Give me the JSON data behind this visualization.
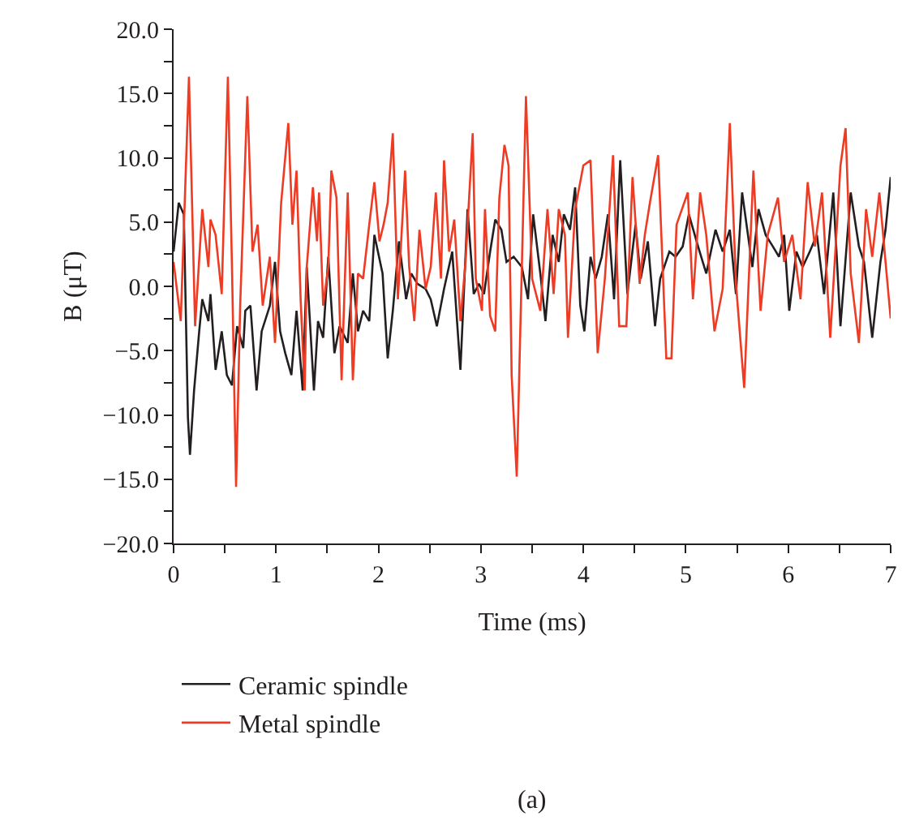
{
  "chart_data": {
    "type": "line",
    "xlabel": "Time (ms)",
    "ylabel": "B (μT)",
    "xlim": [
      0,
      7
    ],
    "ylim": [
      -20,
      20
    ],
    "xticks": [
      0,
      {
        "value": 0.5,
        "label": null
      },
      1,
      {
        "value": 1.5,
        "label": null
      },
      2,
      {
        "value": 2.5,
        "label": null
      },
      3,
      {
        "value": 3.5,
        "label": null
      },
      4,
      {
        "value": 4.5,
        "label": null
      },
      5,
      {
        "value": 5.5,
        "label": null
      },
      6,
      {
        "value": 6.5,
        "label": null
      },
      7
    ],
    "yticks": [
      {
        "value": -20,
        "label": "−20.0"
      },
      {
        "value": -17.5,
        "label": null
      },
      {
        "value": -15,
        "label": "−15.0"
      },
      {
        "value": -12.5,
        "label": null
      },
      {
        "value": -10,
        "label": "−10.0"
      },
      {
        "value": -7.5,
        "label": null
      },
      {
        "value": -5,
        "label": "−5.0"
      },
      {
        "value": -2.5,
        "label": null
      },
      {
        "value": 0,
        "label": "0.0"
      },
      {
        "value": 2.5,
        "label": null
      },
      {
        "value": 5,
        "label": "5.0"
      },
      {
        "value": 7.5,
        "label": null
      },
      {
        "value": 10,
        "label": "10.0"
      },
      {
        "value": 12.5,
        "label": null
      },
      {
        "value": 15,
        "label": "15.0"
      },
      {
        "value": 17.5,
        "label": null
      },
      {
        "value": 20,
        "label": "20.0"
      }
    ],
    "legend": "bottom",
    "marker": "none",
    "line_style": "solid",
    "annotations": [
      "(a)"
    ],
    "series": [
      {
        "name": "Ceramic spindle",
        "color": "#231f20",
        "x": [
          0.0,
          0.05,
          0.1,
          0.14,
          0.16,
          0.2,
          0.25,
          0.28,
          0.34,
          0.36,
          0.41,
          0.47,
          0.52,
          0.57,
          0.62,
          0.68,
          0.7,
          0.75,
          0.81,
          0.86,
          0.94,
          0.99,
          1.04,
          1.09,
          1.15,
          1.2,
          1.26,
          1.3,
          1.37,
          1.41,
          1.46,
          1.51,
          1.57,
          1.62,
          1.7,
          1.75,
          1.8,
          1.85,
          1.91,
          1.96,
          2.04,
          2.09,
          2.14,
          2.2,
          2.27,
          2.32,
          2.38,
          2.46,
          2.51,
          2.57,
          2.64,
          2.72,
          2.8,
          2.87,
          2.93,
          2.98,
          3.03,
          3.09,
          3.14,
          3.2,
          3.25,
          3.32,
          3.4,
          3.46,
          3.51,
          3.58,
          3.63,
          3.7,
          3.76,
          3.81,
          3.87,
          3.92,
          3.97,
          4.01,
          4.07,
          4.12,
          4.18,
          4.24,
          4.3,
          4.36,
          4.43,
          4.51,
          4.56,
          4.63,
          4.7,
          4.75,
          4.84,
          4.9,
          4.97,
          5.03,
          5.12,
          5.2,
          5.29,
          5.36,
          5.43,
          5.49,
          5.55,
          5.65,
          5.71,
          5.78,
          5.85,
          5.91,
          5.96,
          6.01,
          6.08,
          6.14,
          6.21,
          6.28,
          6.35,
          6.44,
          6.51,
          6.61,
          6.69,
          6.74,
          6.82,
          6.9,
          6.95,
          7.0
        ],
        "values": [
          2.7,
          6.5,
          5.6,
          -10.2,
          -13.1,
          -8.1,
          -3.5,
          -1.0,
          -2.7,
          -0.6,
          -6.5,
          -3.5,
          -6.9,
          -7.7,
          -3.1,
          -4.8,
          -1.9,
          -1.5,
          -8.1,
          -3.5,
          -1.5,
          1.9,
          -3.5,
          -5.2,
          -6.9,
          -1.9,
          -8.1,
          1.5,
          -8.1,
          -2.7,
          -4.0,
          2.3,
          -5.2,
          -3.1,
          -4.4,
          1.0,
          -3.5,
          -1.9,
          -2.7,
          4.0,
          1.0,
          -5.6,
          -1.9,
          3.5,
          -1.0,
          1.0,
          0.2,
          -0.2,
          -1.0,
          -3.1,
          -0.2,
          2.7,
          -6.5,
          6.0,
          -0.6,
          0.2,
          -0.6,
          2.7,
          5.2,
          4.4,
          1.9,
          2.3,
          1.5,
          -1.0,
          5.6,
          1.0,
          -2.7,
          4.0,
          1.9,
          5.6,
          4.4,
          7.7,
          -1.5,
          -3.5,
          2.3,
          0.6,
          2.3,
          5.6,
          -1.0,
          9.8,
          -0.6,
          4.8,
          0.6,
          3.5,
          -3.1,
          0.6,
          2.7,
          2.3,
          3.1,
          5.6,
          3.1,
          1.0,
          4.4,
          2.7,
          4.4,
          -0.6,
          7.3,
          1.5,
          6.0,
          4.0,
          3.1,
          2.3,
          4.0,
          -1.9,
          2.7,
          1.5,
          2.7,
          4.0,
          -0.6,
          7.3,
          -3.1,
          7.3,
          3.1,
          1.9,
          -4.0,
          1.9,
          4.4,
          8.5
        ]
      },
      {
        "name": "Metal spindle",
        "color": "#ee3b24",
        "x": [
          0.0,
          0.07,
          0.15,
          0.21,
          0.28,
          0.34,
          0.36,
          0.41,
          0.47,
          0.49,
          0.53,
          0.57,
          0.61,
          0.65,
          0.72,
          0.77,
          0.82,
          0.87,
          0.94,
          0.99,
          1.05,
          1.12,
          1.16,
          1.2,
          1.24,
          1.28,
          1.3,
          1.36,
          1.4,
          1.42,
          1.46,
          1.51,
          1.54,
          1.59,
          1.64,
          1.7,
          1.75,
          1.8,
          1.85,
          1.91,
          1.96,
          2.01,
          2.05,
          2.09,
          2.14,
          2.19,
          2.26,
          2.3,
          2.35,
          2.4,
          2.46,
          2.51,
          2.56,
          2.61,
          2.64,
          2.69,
          2.74,
          2.8,
          2.85,
          2.92,
          2.95,
          3.01,
          3.04,
          3.09,
          3.14,
          3.18,
          3.23,
          3.27,
          3.3,
          3.35,
          3.44,
          3.5,
          3.58,
          3.65,
          3.71,
          3.76,
          3.82,
          3.85,
          3.92,
          4.0,
          4.07,
          4.14,
          4.21,
          4.29,
          4.35,
          4.42,
          4.48,
          4.55,
          4.6,
          4.65,
          4.73,
          4.81,
          4.86,
          4.91,
          5.02,
          5.07,
          5.14,
          5.2,
          5.28,
          5.36,
          5.43,
          5.49,
          5.57,
          5.66,
          5.73,
          5.8,
          5.9,
          5.96,
          6.04,
          6.12,
          6.19,
          6.26,
          6.33,
          6.41,
          6.51,
          6.56,
          6.61,
          6.69,
          6.76,
          6.82,
          6.89,
          6.95,
          7.0
        ],
        "values": [
          1.9,
          -2.7,
          16.3,
          -3.1,
          6.0,
          1.5,
          5.2,
          4.0,
          -0.6,
          5.2,
          16.3,
          1.5,
          -15.6,
          -1.5,
          14.8,
          2.7,
          4.8,
          -1.5,
          2.3,
          -4.4,
          6.5,
          12.7,
          4.8,
          9.0,
          -1.0,
          -8.1,
          1.5,
          7.7,
          3.5,
          7.3,
          -1.5,
          1.5,
          9.0,
          6.9,
          -7.3,
          7.3,
          -7.3,
          1.0,
          0.6,
          4.8,
          8.1,
          3.5,
          4.8,
          6.5,
          11.9,
          -1.0,
          9.0,
          1.5,
          -2.7,
          4.4,
          -0.2,
          1.5,
          7.3,
          0.6,
          9.8,
          2.7,
          5.2,
          -2.7,
          1.9,
          11.9,
          0.6,
          -1.9,
          6.0,
          -2.3,
          -3.5,
          6.9,
          11.0,
          9.4,
          -6.9,
          -14.8,
          14.8,
          0.6,
          -1.9,
          6.0,
          -0.6,
          6.0,
          4.0,
          -4.0,
          6.0,
          9.4,
          9.8,
          -5.2,
          0.6,
          10.2,
          -3.1,
          -3.1,
          8.5,
          0.2,
          4.0,
          6.5,
          10.2,
          -5.6,
          -5.6,
          4.8,
          7.3,
          -1.0,
          7.3,
          4.0,
          -3.5,
          -0.2,
          12.7,
          0.2,
          -7.9,
          9.0,
          -1.9,
          4.0,
          6.9,
          1.9,
          4.0,
          -1.0,
          8.1,
          3.1,
          7.3,
          -4.0,
          9.4,
          12.3,
          1.0,
          -4.4,
          6.0,
          2.3,
          7.3,
          1.9,
          -2.5
        ]
      }
    ]
  }
}
